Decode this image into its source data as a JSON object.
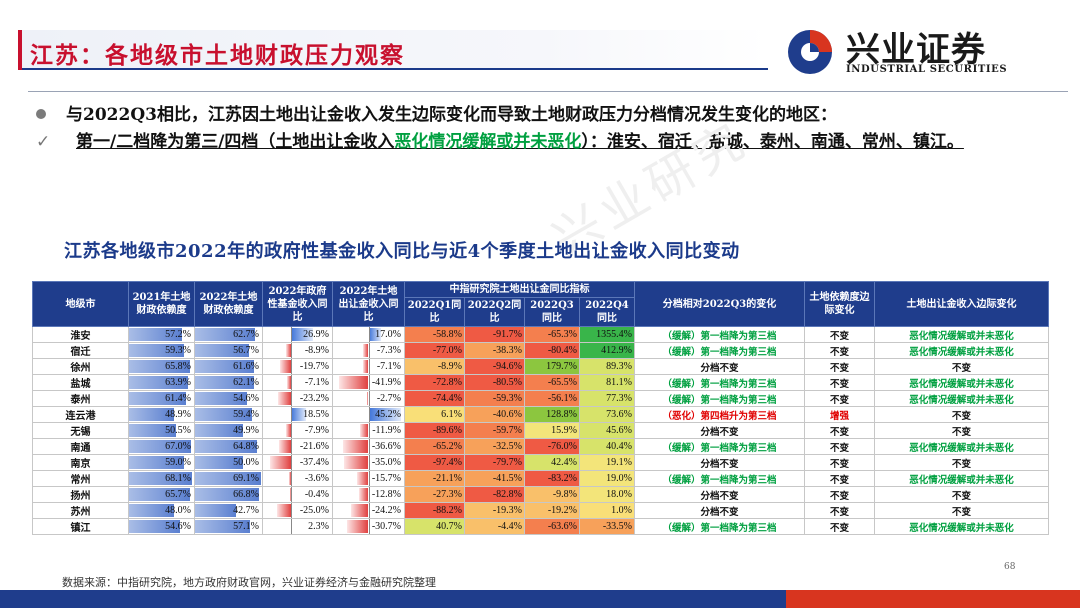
{
  "header": {
    "title": "江苏：各地级市土地财政压力观察",
    "logo_cn": "兴业证券",
    "logo_en": "INDUSTRIAL SECURITIES"
  },
  "bullets": {
    "b1": "与2022Q3相比，江苏因土地出让金收入发生边际变化而导致土地财政压力分档情况发生变化的地区：",
    "b2_prefix": "第一/二档降为第三/四档（土地出让金收入",
    "b2_green": "恶化情况缓解或并未恶化",
    "b2_suffix": "）：淮安、宿迁、盐城、泰州、南通、常州、镇江。"
  },
  "table_title": "江苏各地级市2022年的政府性基金收入同比与近4个季度土地出让金收入同比变动",
  "table": {
    "headers": {
      "city": "地级市",
      "dep2021": "2021年土地财政依赖度",
      "dep2022": "2022年土地财政依赖度",
      "fund2022": "2022年政府性基金收入同比",
      "land2022": "2022年土地出让金收入同比",
      "group": "中指研究院土地出让金同比指标",
      "q1": "2022Q1同比",
      "q2": "2022Q2同比",
      "q3": "2022Q3同比",
      "q4": "2022Q4同比",
      "change": "分档相对2022Q3的变化",
      "edge_dep": "土地依赖度边际变化",
      "edge_land": "土地出让金收入边际变化"
    },
    "rows": [
      {
        "city": "淮安",
        "dep2021": "57.2%",
        "dep2022": "62.7%",
        "fund": "26.9%",
        "land": "17.0%",
        "q1": "-58.8%",
        "q2": "-91.7%",
        "q3": "-65.3%",
        "q4": "1355.4%",
        "change": "（缓解）第一档降为第三档",
        "change_type": "good",
        "edge_dep": "不变",
        "edge_land": "恶化情况缓解或并未恶化",
        "edge_land_type": "good"
      },
      {
        "city": "宿迁",
        "dep2021": "59.3%",
        "dep2022": "56.7%",
        "fund": "-8.9%",
        "land": "-7.3%",
        "q1": "-77.0%",
        "q2": "-38.3%",
        "q3": "-80.4%",
        "q4": "412.9%",
        "change": "（缓解）第一档降为第三档",
        "change_type": "good",
        "edge_dep": "不变",
        "edge_land": "恶化情况缓解或并未恶化",
        "edge_land_type": "good"
      },
      {
        "city": "徐州",
        "dep2021": "65.8%",
        "dep2022": "61.6%",
        "fund": "-19.7%",
        "land": "-7.1%",
        "q1": "-8.9%",
        "q2": "-94.6%",
        "q3": "179.7%",
        "q4": "89.3%",
        "change": "分档不变",
        "change_type": "flat",
        "edge_dep": "不变",
        "edge_land": "不变",
        "edge_land_type": "flat"
      },
      {
        "city": "盐城",
        "dep2021": "63.9%",
        "dep2022": "62.1%",
        "fund": "-7.1%",
        "land": "-41.9%",
        "q1": "-72.8%",
        "q2": "-80.5%",
        "q3": "-65.5%",
        "q4": "81.1%",
        "change": "（缓解）第一档降为第三档",
        "change_type": "good",
        "edge_dep": "不变",
        "edge_land": "恶化情况缓解或并未恶化",
        "edge_land_type": "good"
      },
      {
        "city": "泰州",
        "dep2021": "61.4%",
        "dep2022": "54.6%",
        "fund": "-23.2%",
        "land": "-2.7%",
        "q1": "-74.4%",
        "q2": "-59.3%",
        "q3": "-56.1%",
        "q4": "77.3%",
        "change": "（缓解）第一档降为第三档",
        "change_type": "good",
        "edge_dep": "不变",
        "edge_land": "恶化情况缓解或并未恶化",
        "edge_land_type": "good"
      },
      {
        "city": "连云港",
        "dep2021": "48.9%",
        "dep2022": "59.4%",
        "fund": "18.5%",
        "land": "45.2%",
        "q1": "6.1%",
        "q2": "-40.6%",
        "q3": "128.8%",
        "q4": "73.6%",
        "change": "（恶化）第四档升为第三档",
        "change_type": "bad",
        "edge_dep": "增强",
        "edge_land": "不变",
        "edge_land_type": "flat"
      },
      {
        "city": "无锡",
        "dep2021": "50.5%",
        "dep2022": "49.9%",
        "fund": "-7.9%",
        "land": "-11.9%",
        "q1": "-89.6%",
        "q2": "-59.7%",
        "q3": "15.9%",
        "q4": "45.6%",
        "change": "分档不变",
        "change_type": "flat",
        "edge_dep": "不变",
        "edge_land": "不变",
        "edge_land_type": "flat"
      },
      {
        "city": "南通",
        "dep2021": "67.0%",
        "dep2022": "64.8%",
        "fund": "-21.6%",
        "land": "-36.6%",
        "q1": "-65.2%",
        "q2": "-32.5%",
        "q3": "-76.0%",
        "q4": "40.4%",
        "change": "（缓解）第一档降为第三档",
        "change_type": "good",
        "edge_dep": "不变",
        "edge_land": "恶化情况缓解或并未恶化",
        "edge_land_type": "good"
      },
      {
        "city": "南京",
        "dep2021": "59.0%",
        "dep2022": "50.0%",
        "fund": "-37.4%",
        "land": "-35.0%",
        "q1": "-97.4%",
        "q2": "-79.7%",
        "q3": "42.4%",
        "q4": "19.1%",
        "change": "分档不变",
        "change_type": "flat",
        "edge_dep": "不变",
        "edge_land": "不变",
        "edge_land_type": "flat"
      },
      {
        "city": "常州",
        "dep2021": "68.1%",
        "dep2022": "69.1%",
        "fund": "-3.6%",
        "land": "-15.7%",
        "q1": "-21.1%",
        "q2": "-41.5%",
        "q3": "-83.2%",
        "q4": "19.0%",
        "change": "（缓解）第一档降为第三档",
        "change_type": "good",
        "edge_dep": "不变",
        "edge_land": "恶化情况缓解或并未恶化",
        "edge_land_type": "good"
      },
      {
        "city": "扬州",
        "dep2021": "65.7%",
        "dep2022": "66.8%",
        "fund": "-0.4%",
        "land": "-12.8%",
        "q1": "-27.3%",
        "q2": "-82.8%",
        "q3": "-9.8%",
        "q4": "18.0%",
        "change": "分档不变",
        "change_type": "flat",
        "edge_dep": "不变",
        "edge_land": "不变",
        "edge_land_type": "flat"
      },
      {
        "city": "苏州",
        "dep2021": "48.0%",
        "dep2022": "42.7%",
        "fund": "-25.0%",
        "land": "-24.2%",
        "q1": "-88.2%",
        "q2": "-19.3%",
        "q3": "-19.2%",
        "q4": "1.0%",
        "change": "分档不变",
        "change_type": "flat",
        "edge_dep": "不变",
        "edge_land": "不变",
        "edge_land_type": "flat"
      },
      {
        "city": "镇江",
        "dep2021": "54.6%",
        "dep2022": "57.1%",
        "fund": "2.3%",
        "land": "-30.7%",
        "q1": "40.7%",
        "q2": "-4.4%",
        "q3": "-63.6%",
        "q4": "-33.5%",
        "change": "（缓解）第一档降为第三档",
        "change_type": "good",
        "edge_dep": "不变",
        "edge_land": "恶化情况缓解或并未恶化",
        "edge_land_type": "good"
      }
    ]
  },
  "footer": {
    "source": "数据来源：中指研究院，地方政府财政官网，兴业证券经济与金融研究院整理",
    "page_number": "68"
  },
  "colors": {
    "title_red": "#c8102e",
    "header_blue": "#1f3d8c",
    "good_green": "#00a040",
    "bad_red": "#e00000"
  }
}
